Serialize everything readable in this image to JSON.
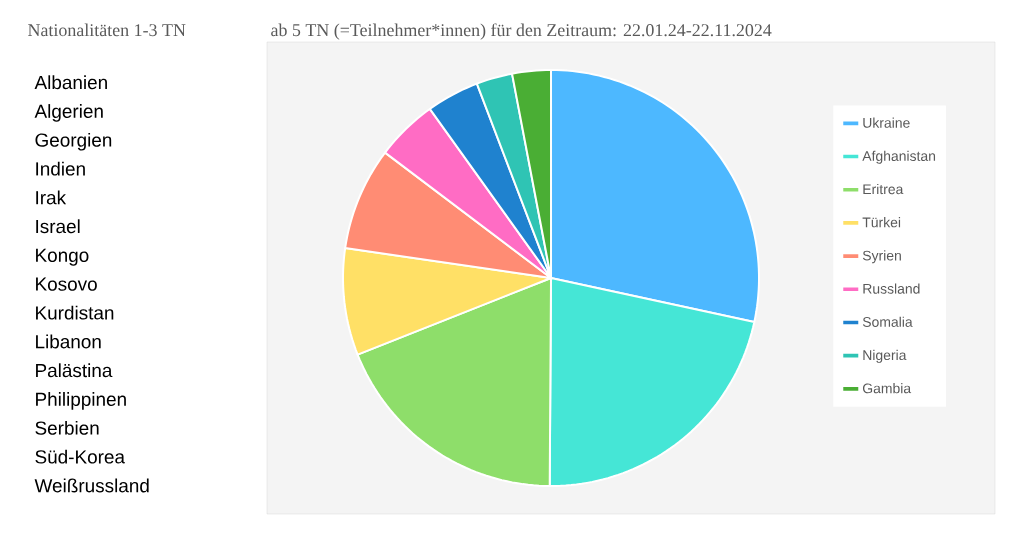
{
  "chart_data": {
    "type": "pie",
    "title": "ab 5 TN (=Teilnehmer*innen) für den Zeitraum: 22.01.24-22.11.2024",
    "categories": [
      "Ukraine",
      "Afghanistan",
      "Eritrea",
      "Türkei",
      "Syrien",
      "Russland",
      "Somalia",
      "Nigeria",
      "Gambia"
    ],
    "values": [
      28.4,
      21.7,
      18.9,
      8.3,
      8.0,
      4.8,
      4.1,
      2.8,
      3.0
    ],
    "colors": [
      "#4db8ff",
      "#45e6d6",
      "#8ede6a",
      "#ffe066",
      "#ff8c74",
      "#ff6cc4",
      "#1f82cf",
      "#2fc4b4",
      "#4aae34"
    ],
    "legend": "right",
    "annotations": [
      "Nationalitäten 1-3 TN",
      "Albanien",
      "Algerien",
      "Georgien",
      "Indien",
      "Irak",
      "Israel",
      "Kongo",
      "Kosovo",
      "Kurdistan",
      "Libanon",
      "Palästina",
      "Philippinen",
      "Serbien",
      "Süd-Korea",
      "Weißrussland"
    ]
  }
}
